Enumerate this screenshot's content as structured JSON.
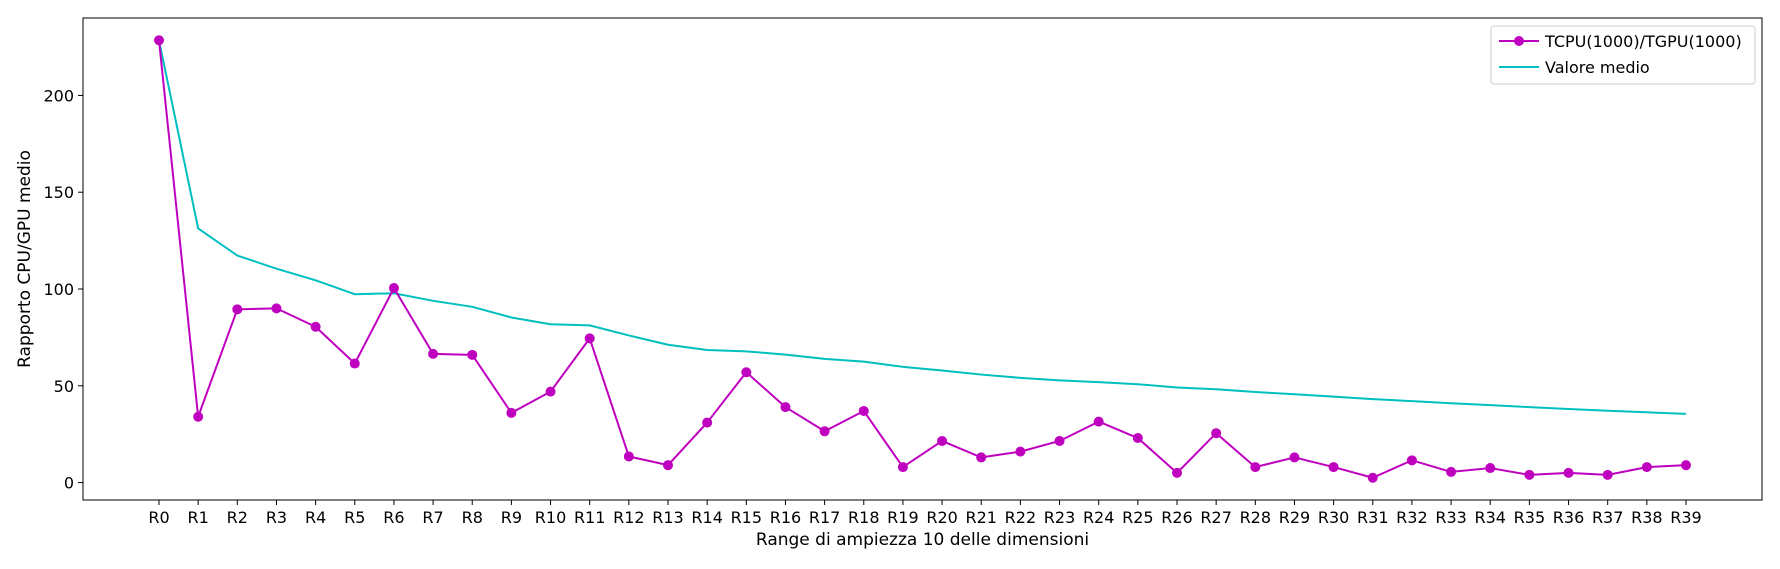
{
  "chart_data": {
    "type": "line",
    "title": "",
    "xlabel": "Range di ampiezza 10 delle dimensioni",
    "ylabel": "Rapporto CPU/GPU medio",
    "categories": [
      "R0",
      "R1",
      "R2",
      "R3",
      "R4",
      "R5",
      "R6",
      "R7",
      "R8",
      "R9",
      "R10",
      "R11",
      "R12",
      "R13",
      "R14",
      "R15",
      "R16",
      "R17",
      "R18",
      "R19",
      "R20",
      "R21",
      "R22",
      "R23",
      "R24",
      "R25",
      "R26",
      "R27",
      "R28",
      "R29",
      "R30",
      "R31",
      "R32",
      "R33",
      "R34",
      "R35",
      "R36",
      "R37",
      "R38",
      "R39"
    ],
    "ylim": [
      -9,
      240
    ],
    "yticks": [
      0,
      50,
      100,
      150,
      200
    ],
    "grid": false,
    "legend_position": "top-right",
    "series": [
      {
        "name": "TCPU(1000)/TGPU(1000)",
        "color": "#bf00bf",
        "marker": "circle",
        "values": [
          228.5,
          34,
          89.5,
          90,
          80.5,
          61.5,
          100.5,
          66.5,
          66,
          36,
          47,
          74.5,
          13.5,
          9,
          31,
          57,
          39,
          26.5,
          37,
          8,
          21.5,
          13,
          16,
          21.5,
          31.5,
          23,
          5,
          25.5,
          8,
          13,
          8,
          2.5,
          11.5,
          5.5,
          7.5,
          4,
          5,
          4,
          8,
          9
        ]
      },
      {
        "name": "Valore medio",
        "color": "#00bfbf",
        "marker": "none",
        "values": [
          228.5,
          131.3,
          117.3,
          110.5,
          104.5,
          97.3,
          97.8,
          93.9,
          90.8,
          85.3,
          81.8,
          81.2,
          76.0,
          71.2,
          68.5,
          67.8,
          66.1,
          63.9,
          62.5,
          59.8,
          57.9,
          55.8,
          54.1,
          52.8,
          51.9,
          50.8,
          49.1,
          48.2,
          46.8,
          45.6,
          44.4,
          43.1,
          42.1,
          41.0,
          40.0,
          39.0,
          38.0,
          37.1,
          36.3,
          35.5
        ]
      }
    ]
  }
}
